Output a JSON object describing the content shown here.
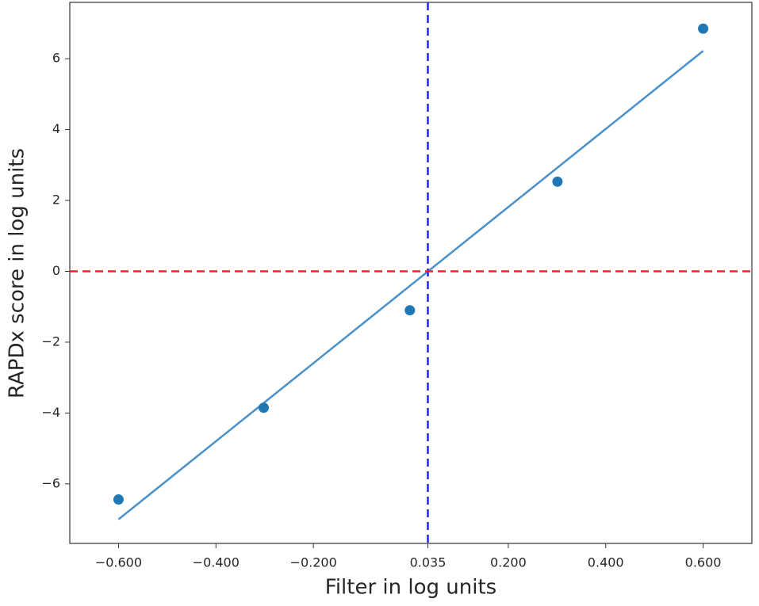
{
  "chart_data": {
    "type": "scatter",
    "x_label": "Filter in log units",
    "y_label": "RAPDx score in log units",
    "xlim": [
      -0.7,
      0.7
    ],
    "ylim": [
      -7.68,
      7.59
    ],
    "xticks": [
      {
        "value": -0.6,
        "label": "−0.600"
      },
      {
        "value": -0.4,
        "label": "−0.400"
      },
      {
        "value": -0.2,
        "label": "−0.200"
      },
      {
        "value": 0.035,
        "label": "0.035"
      },
      {
        "value": 0.2,
        "label": "0.200"
      },
      {
        "value": 0.4,
        "label": "0.400"
      },
      {
        "value": 0.6,
        "label": "0.600"
      }
    ],
    "yticks": [
      {
        "value": -6,
        "label": "−6"
      },
      {
        "value": -4,
        "label": "−4"
      },
      {
        "value": -2,
        "label": "−2"
      },
      0,
      2,
      4,
      6
    ],
    "series": [
      {
        "kind": "scatter",
        "color": "#1f77b4",
        "x": [
          -0.6,
          -0.302,
          -0.002,
          0.301,
          0.6
        ],
        "values": [
          -6.44,
          -3.85,
          -1.1,
          2.53,
          6.85
        ]
      },
      {
        "kind": "line",
        "color": "#4a90c8",
        "x": [
          -0.6,
          0.6
        ],
        "values": [
          -7.0,
          6.22
        ]
      }
    ],
    "reference_lines": [
      {
        "axis": "x",
        "value": 0.035,
        "color": "#2222ee"
      },
      {
        "axis": "y",
        "value": 0,
        "color": "#ee2222"
      }
    ]
  }
}
